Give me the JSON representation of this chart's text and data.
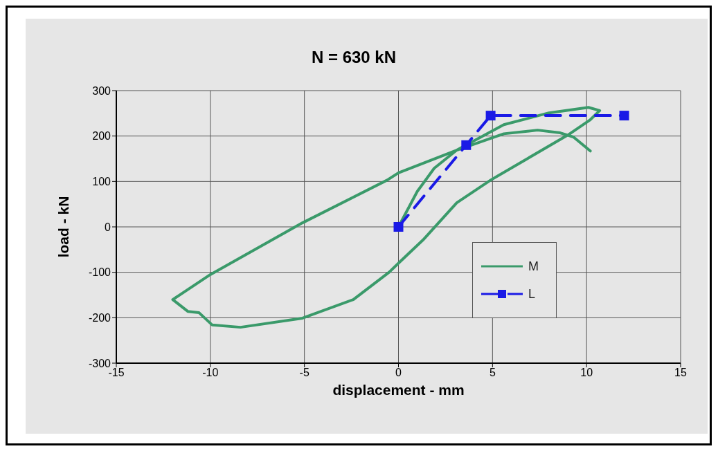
{
  "chart_data": {
    "type": "line",
    "title": "N = 630 kN",
    "xlabel": "displacement - mm",
    "ylabel": "load - kN",
    "xlim": [
      -15,
      15
    ],
    "xticks": [
      -15,
      -10,
      -5,
      0,
      5,
      10,
      15
    ],
    "ylim": [
      -300,
      300
    ],
    "yticks": [
      -300,
      -200,
      -100,
      0,
      100,
      200,
      300
    ],
    "grid": true,
    "legend": "right",
    "series": [
      {
        "name": "M",
        "color": "#3a9a6a",
        "marker": "none",
        "line_style": "solid",
        "x": [
          0,
          1,
          1.9,
          3.1,
          5.6,
          8,
          10.1,
          10.7,
          10.2,
          9,
          6.8,
          4.9,
          3.1,
          1.3,
          0,
          -0.5,
          -2.4,
          -5.1,
          -8.4,
          -9.9,
          -10.6,
          -11.2,
          -12,
          -10,
          -5.1,
          -0.6,
          0,
          3.1,
          5.6,
          7.4,
          8.6,
          9.3,
          10.2
        ],
        "values": [
          0,
          78,
          129,
          169,
          225,
          251,
          263,
          256,
          236,
          202,
          149,
          103,
          53,
          -29,
          -80,
          -100,
          -160,
          -201,
          -221,
          -216,
          -189,
          -186,
          -160,
          -105,
          9,
          103,
          119,
          169,
          205,
          213,
          207,
          198,
          167
        ]
      },
      {
        "name": "L",
        "color": "#1a1ae6",
        "marker": "square",
        "line_style": "dashed",
        "x": [
          0,
          3.6,
          4.9,
          12
        ],
        "values": [
          0,
          180,
          245,
          245
        ]
      }
    ]
  }
}
